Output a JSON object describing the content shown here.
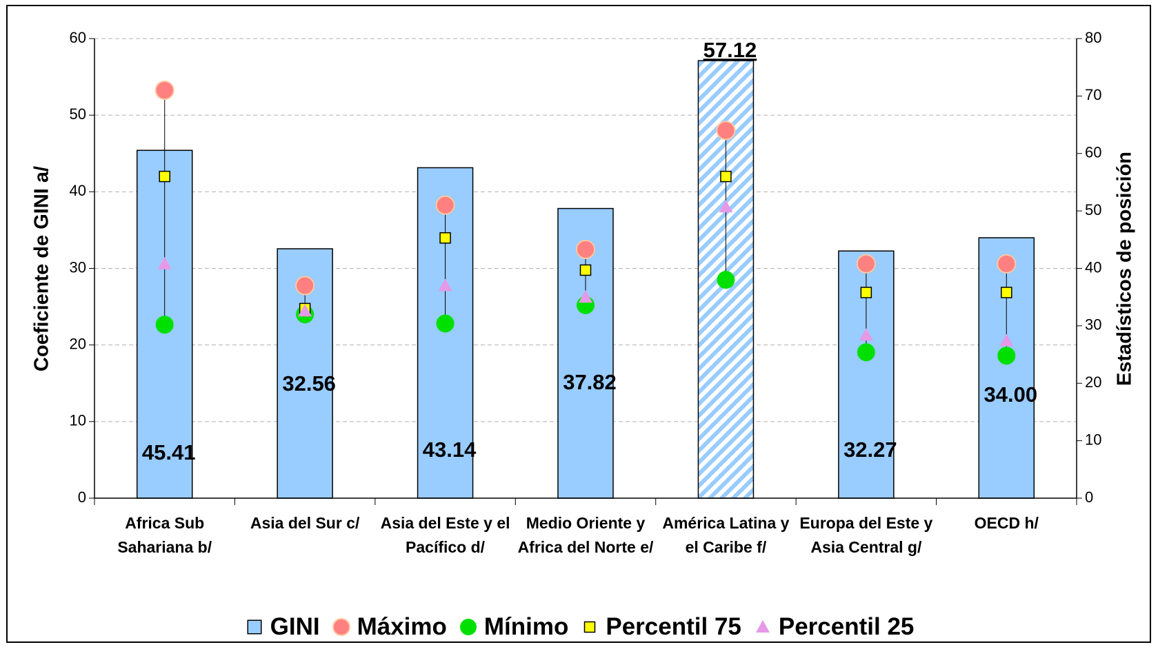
{
  "chart_data": {
    "type": "bar_markers",
    "ylabel": "Coeficiente de GINI a/",
    "y2label": "Estadísticos de posición",
    "categories": [
      "Africa Sub Sahariana b/",
      "Asia del Sur c/",
      "Asia del Este y el Pacífico d/",
      "Medio Oriente y Africa del Norte e/",
      "América Latina y el Caribe f/",
      "Europa del Este y Asia Central g/",
      "OECD h/"
    ],
    "series": [
      {
        "name": "GINI",
        "color": "#99ccff",
        "marker": "square",
        "values": [
          45.41,
          32.56,
          43.14,
          37.82,
          57.12,
          32.27,
          34.0
        ],
        "value_labels": [
          "45.41",
          "32.56",
          "43.14",
          "37.82",
          "57.12",
          "32.27",
          "34.00"
        ]
      },
      {
        "name": "Máximo",
        "color": "#ff8080",
        "marker": "circle",
        "axis": "y2",
        "values": [
          71,
          37,
          51,
          43.3,
          64,
          40.8,
          40.8
        ]
      },
      {
        "name": "Mínimo",
        "color": "#00e000",
        "marker": "circle",
        "axis": "y2",
        "values": [
          30.2,
          32,
          30.4,
          33.6,
          38,
          25.4,
          24.8
        ]
      },
      {
        "name": "Percentil 75",
        "color": "#ffff00",
        "marker": "square",
        "axis": "y2",
        "values": [
          56,
          33,
          45.3,
          39.7,
          56,
          35.8,
          35.8
        ]
      },
      {
        "name": "Percentil 25",
        "color": "#e699e6",
        "marker": "triangle",
        "axis": "y2",
        "values": [
          40.8,
          32.6,
          37,
          35,
          50.7,
          28.4,
          27.4
        ]
      }
    ],
    "hatched_index": 4,
    "ylim": [
      0,
      60
    ],
    "yticks": [
      0,
      10,
      20,
      30,
      40,
      50,
      60
    ],
    "y2lim": [
      0,
      80
    ],
    "y2ticks": [
      0,
      10,
      20,
      30,
      40,
      50,
      60,
      70,
      80
    ],
    "grid": true,
    "legend": "bottom"
  }
}
